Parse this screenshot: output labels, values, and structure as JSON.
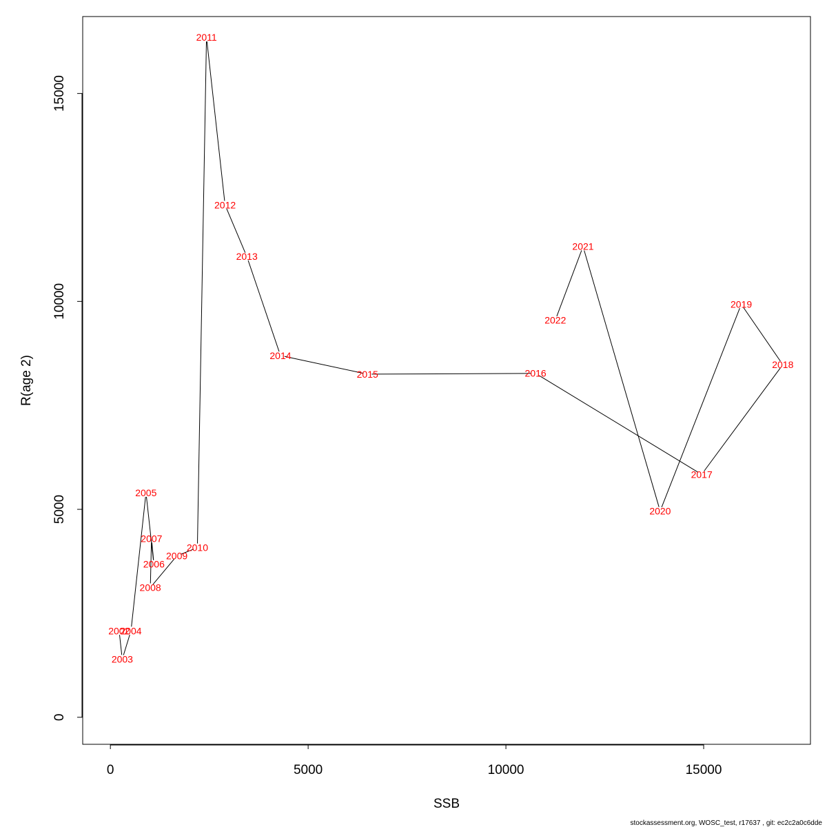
{
  "chart_data": {
    "type": "line",
    "xlabel": "SSB",
    "ylabel": "R(age 2)",
    "xlim": [
      -700,
      17700
    ],
    "ylim": [
      -650,
      16850
    ],
    "x_ticks": [
      0,
      5000,
      10000,
      15000
    ],
    "y_ticks": [
      0,
      5000,
      10000,
      15000
    ],
    "x_tick_labels": [
      "0",
      "5000",
      "10000",
      "15000"
    ],
    "y_tick_labels": [
      "0",
      "5000",
      "10000",
      "15000"
    ],
    "grid": false,
    "legend": "none",
    "line_color": "#000000",
    "label_color": "#ff0000",
    "points": [
      {
        "year": "2002",
        "x": 220,
        "y": 2080
      },
      {
        "year": "2003",
        "x": 300,
        "y": 1400
      },
      {
        "year": "2004",
        "x": 520,
        "y": 2080
      },
      {
        "year": "2005",
        "x": 900,
        "y": 5400
      },
      {
        "year": "2006",
        "x": 1100,
        "y": 3680
      },
      {
        "year": "2007",
        "x": 1040,
        "y": 4300
      },
      {
        "year": "2008",
        "x": 1010,
        "y": 3120
      },
      {
        "year": "2009",
        "x": 1680,
        "y": 3880
      },
      {
        "year": "2010",
        "x": 2200,
        "y": 4080
      },
      {
        "year": "2011",
        "x": 2430,
        "y": 16350
      },
      {
        "year": "2012",
        "x": 2900,
        "y": 12320
      },
      {
        "year": "2013",
        "x": 3450,
        "y": 11080
      },
      {
        "year": "2014",
        "x": 4300,
        "y": 8700
      },
      {
        "year": "2015",
        "x": 6500,
        "y": 8250
      },
      {
        "year": "2016",
        "x": 10750,
        "y": 8270
      },
      {
        "year": "2017",
        "x": 14950,
        "y": 5840
      },
      {
        "year": "2018",
        "x": 17000,
        "y": 8480
      },
      {
        "year": "2019",
        "x": 15950,
        "y": 9930
      },
      {
        "year": "2020",
        "x": 13900,
        "y": 4960
      },
      {
        "year": "2021",
        "x": 11950,
        "y": 11320
      },
      {
        "year": "2022",
        "x": 11250,
        "y": 9550
      }
    ]
  },
  "footer": "stockassessment.org, WOSC_test, r17637 , git: ec2c2a0c6dde"
}
